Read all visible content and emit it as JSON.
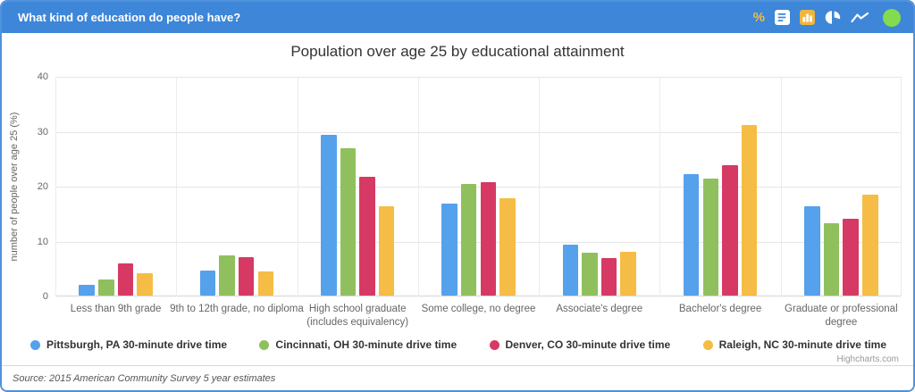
{
  "header": {
    "title": "What kind of education do people have?",
    "toolbar": {
      "percent_label": "%",
      "icons": [
        "percent-icon",
        "data-table-icon",
        "bar-chart-icon",
        "pie-chart-icon",
        "line-chart-icon",
        "status-circle-icon"
      ],
      "active_icon": "bar-chart-icon",
      "colors": {
        "header_bg": "#3d86d8",
        "accent_gold": "#f0b63e",
        "status_green": "#84db4f"
      }
    }
  },
  "chart_data": {
    "type": "bar",
    "title": "Population over age 25 by educational attainment",
    "xlabel": "",
    "ylabel": "number of people over age 25 (%)",
    "ylim": [
      0,
      40
    ],
    "yticks": [
      0,
      10,
      20,
      30,
      40
    ],
    "grid": true,
    "legend_position": "bottom",
    "categories": [
      "Less than 9th grade",
      "9th to 12th grade, no diploma",
      "High school graduate (includes equivalency)",
      "Some college, no degree",
      "Associate's degree",
      "Bachelor's degree",
      "Graduate or professional degree"
    ],
    "series": [
      {
        "name": "Pittsburgh, PA 30-minute drive time",
        "color": "#55a1ec",
        "values": [
          2.0,
          4.6,
          29.2,
          16.7,
          9.2,
          22.1,
          16.2
        ]
      },
      {
        "name": "Cincinnati, OH 30-minute drive time",
        "color": "#90c05e",
        "values": [
          3.0,
          7.3,
          26.9,
          20.3,
          7.8,
          21.3,
          13.2
        ]
      },
      {
        "name": "Denver, CO 30-minute drive time",
        "color": "#d63a64",
        "values": [
          5.8,
          7.0,
          21.6,
          20.7,
          6.8,
          23.7,
          14.0
        ]
      },
      {
        "name": "Raleigh, NC 30-minute drive time",
        "color": "#f5bd45",
        "values": [
          4.0,
          4.4,
          16.2,
          17.7,
          7.9,
          31.1,
          18.3
        ]
      }
    ],
    "credits": "Highcharts.com"
  },
  "footer": {
    "source": "Source: 2015 American Community Survey 5 year estimates"
  }
}
